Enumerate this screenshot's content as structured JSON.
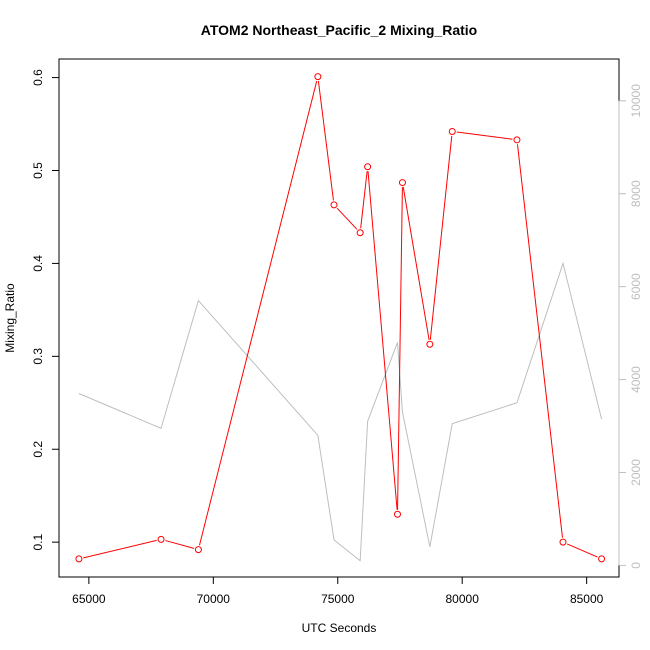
{
  "chart_data": {
    "type": "line",
    "title": "ATOM2 Northeast_Pacific_2 Mixing_Ratio",
    "xlabel": "UTC Seconds",
    "ylabel": "Mixing_Ratio",
    "xlim": [
      63800,
      86300
    ],
    "ylim": [
      0.0625,
      0.62
    ],
    "y2lim": [
      -250,
      10900
    ],
    "xticks": [
      65000,
      70000,
      75000,
      80000,
      85000
    ],
    "yticks": [
      0.1,
      0.2,
      0.3,
      0.4,
      0.5,
      0.6
    ],
    "y2ticks": [
      0,
      2000,
      4000,
      6000,
      8000,
      10000
    ],
    "grid": false,
    "legend": "none",
    "colors": {
      "primary": "#ff0000",
      "secondary": "#bebebe"
    },
    "series": [
      {
        "axis": "left",
        "style": "line+points",
        "x": [
          64600,
          67900,
          69400,
          74200,
          74850,
          75900,
          76200,
          77400,
          77600,
          78700,
          79600,
          82200,
          84050,
          85600
        ],
        "values": [
          0.082,
          0.103,
          0.092,
          0.601,
          0.463,
          0.433,
          0.504,
          0.13,
          0.487,
          0.313,
          0.542,
          0.533,
          0.1,
          0.082
        ]
      },
      {
        "axis": "right",
        "style": "line",
        "x": [
          64600,
          67900,
          69400,
          74200,
          74850,
          75900,
          76200,
          77400,
          77600,
          78700,
          79600,
          82200,
          84050,
          85600
        ],
        "values": [
          3700,
          2950,
          5700,
          2800,
          550,
          100,
          3100,
          4800,
          3300,
          400,
          3050,
          3500,
          6500,
          3150
        ]
      }
    ]
  }
}
